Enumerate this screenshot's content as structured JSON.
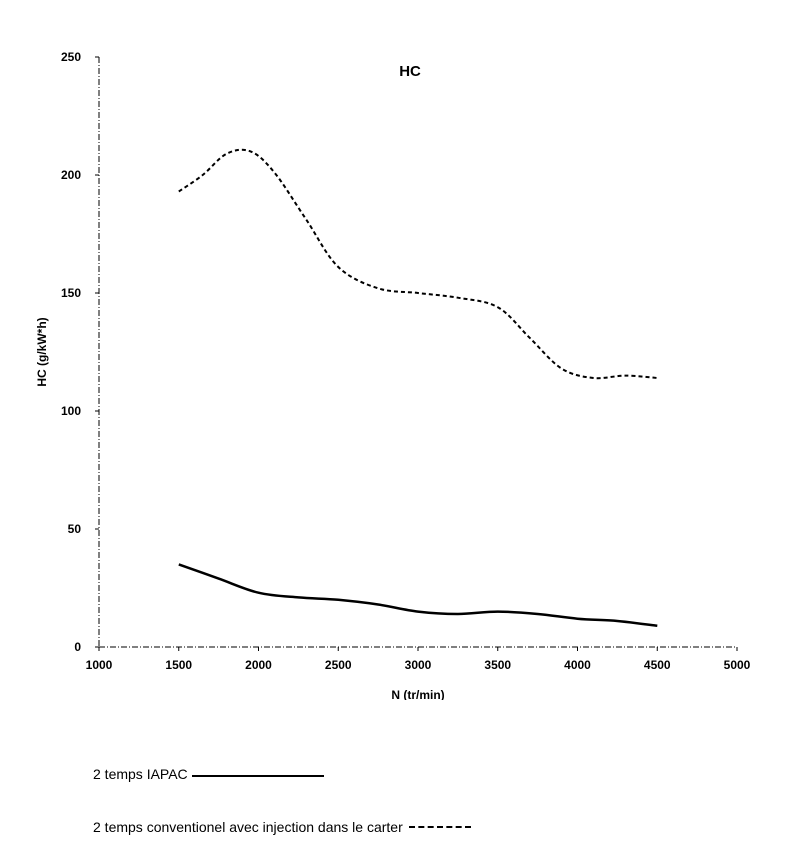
{
  "chart_data": {
    "type": "line",
    "title": "HC",
    "xlabel": "N (tr/min)",
    "ylabel": "HC (g/kW*h)",
    "xlim": [
      1000,
      5000
    ],
    "ylim": [
      0,
      250
    ],
    "xticks": [
      1000,
      1500,
      2000,
      2500,
      3000,
      3500,
      4000,
      4500,
      5000
    ],
    "yticks": [
      0,
      50,
      100,
      150,
      200,
      250
    ],
    "grid": false,
    "legend_position": "bottom",
    "series": [
      {
        "name": "2 temps IAPAC",
        "style": "solid",
        "color": "#000000",
        "x": [
          1500,
          1750,
          2000,
          2250,
          2500,
          2750,
          3000,
          3250,
          3500,
          3750,
          4000,
          4250,
          4500
        ],
        "y": [
          35,
          29,
          23,
          21,
          20,
          18,
          15,
          14,
          15,
          14,
          12,
          11,
          9
        ]
      },
      {
        "name": "2 temps conventionel avec injection dans le carter",
        "style": "dashed",
        "color": "#000000",
        "x": [
          1500,
          1650,
          1800,
          1950,
          2100,
          2300,
          2500,
          2750,
          3000,
          3250,
          3500,
          3700,
          3900,
          4100,
          4300,
          4500
        ],
        "y": [
          193,
          200,
          209,
          210,
          201,
          181,
          161,
          152,
          150,
          148,
          144,
          131,
          118,
          114,
          115,
          114
        ]
      }
    ]
  },
  "legend": {
    "items": [
      {
        "label": "2 temps IAPAC",
        "style": "solid"
      },
      {
        "label": "2 temps conventionel avec injection dans le carter",
        "style": "dashed"
      }
    ]
  }
}
